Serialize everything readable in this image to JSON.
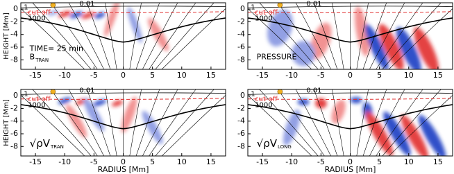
{
  "chart_data": [
    {
      "type": "heatmap",
      "ylabel": "HEIGHT [Mm]",
      "label": "B",
      "label_sub": "TRAN",
      "time": "TIME= 25 min",
      "annotations": [
        "1",
        "cut-off",
        "0.01",
        "1000"
      ],
      "xlim": [
        -17.5,
        17.5
      ],
      "ylim": [
        -9.5,
        1
      ],
      "xticks": [
        -15,
        -10,
        -5,
        0,
        5,
        10,
        15
      ],
      "yticks": [
        0,
        -2,
        -4,
        -6,
        -8
      ]
    },
    {
      "type": "heatmap",
      "label": "PRESSURE",
      "annotations": [
        "1",
        "cut-off",
        "0.01",
        "1000"
      ],
      "xlim": [
        -17.5,
        17.5
      ],
      "ylim": [
        -9.5,
        1
      ],
      "xticks": [
        -15,
        -10,
        -5,
        0,
        5,
        10,
        15
      ],
      "yticks": [
        0,
        -2,
        -4,
        -6,
        -8
      ]
    },
    {
      "type": "heatmap",
      "ylabel": "HEIGHT [Mm]",
      "xlabel": "RADIUS [Mm]",
      "label": "√ρV",
      "label_sub": "TRAN",
      "annotations": [
        "1",
        "cut-off",
        "0.01",
        "1000"
      ],
      "xlim": [
        -17.5,
        17.5
      ],
      "ylim": [
        -9.5,
        1
      ],
      "xticks": [
        -15,
        -10,
        -5,
        0,
        5,
        10,
        15
      ],
      "yticks": [
        0,
        -2,
        -4,
        -6,
        -8
      ]
    },
    {
      "type": "heatmap",
      "xlabel": "RADIUS [Mm]",
      "label": "√ρV",
      "label_sub": "LONG",
      "annotations": [
        "1",
        "cut-off",
        "0.01",
        "1000"
      ],
      "xlim": [
        -17.5,
        17.5
      ],
      "ylim": [
        -9.5,
        1
      ],
      "xticks": [
        -15,
        -10,
        -5,
        0,
        5,
        10,
        15
      ],
      "yticks": [
        0,
        -2,
        -4,
        -6,
        -8
      ]
    }
  ]
}
